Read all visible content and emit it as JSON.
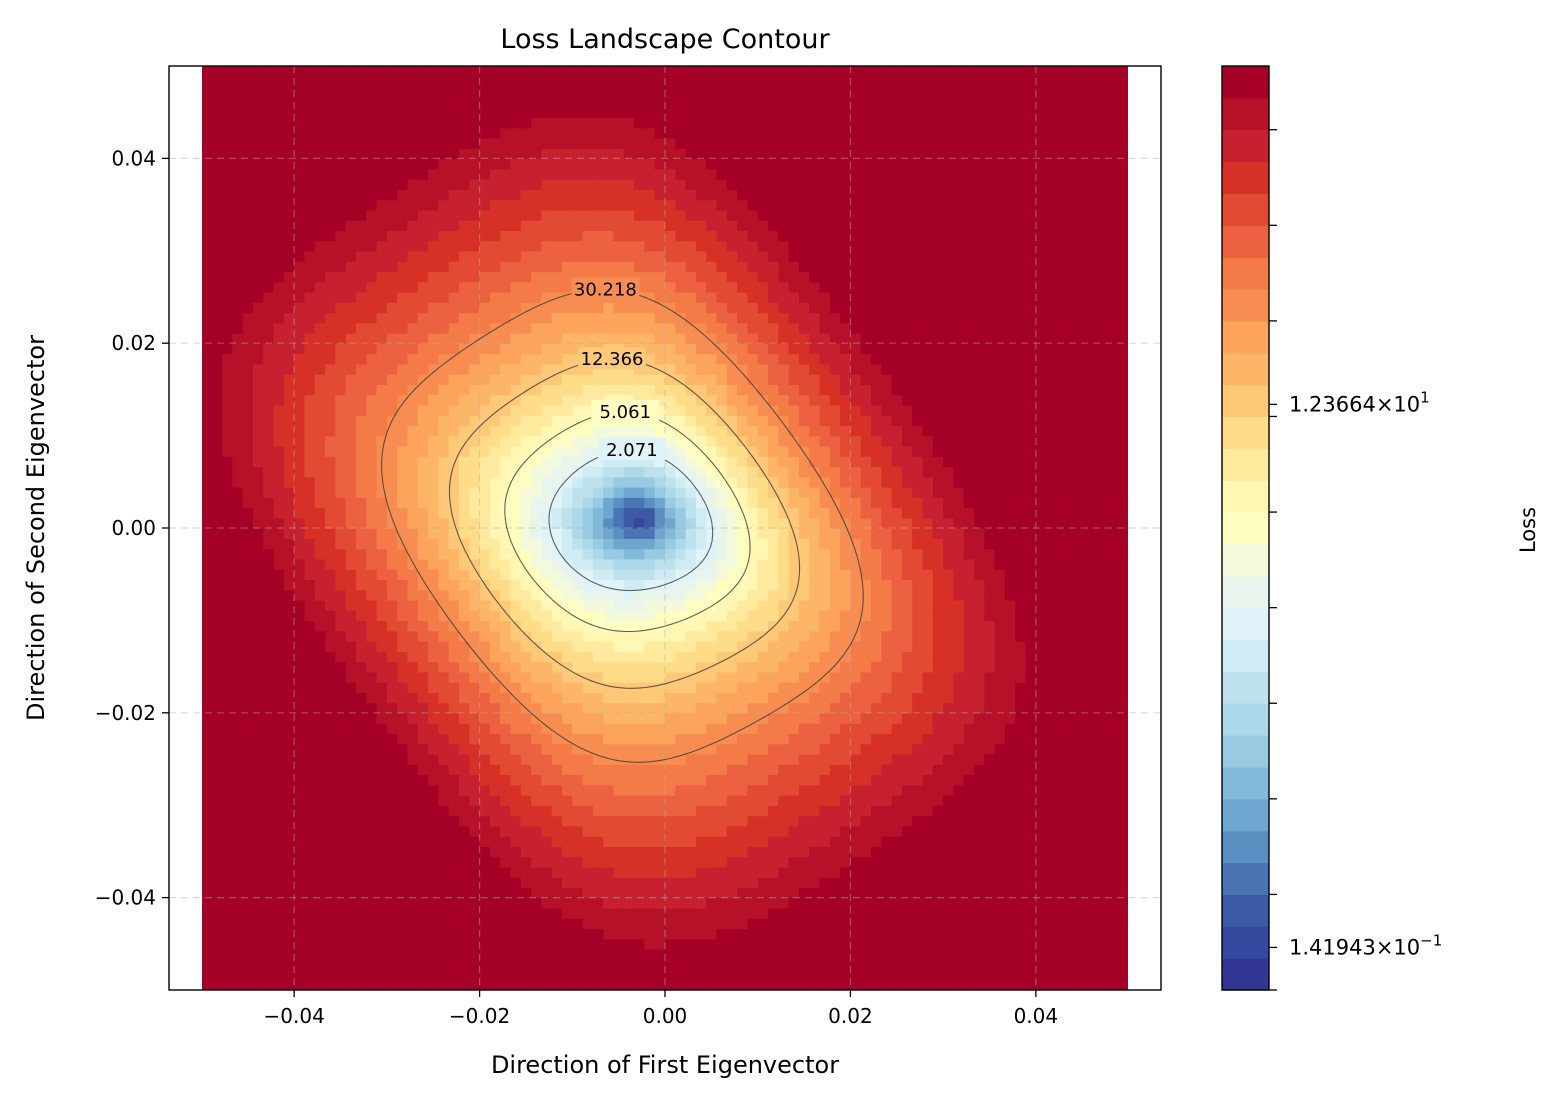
{
  "chart_data": {
    "type": "contour",
    "title": "Loss Landscape Contour",
    "xlabel": "Direction of First Eigenvector",
    "ylabel": "Direction of Second Eigenvector",
    "colorbar_label": "Loss",
    "colormap": "RdYlBu_r",
    "color_scale": "log",
    "xlim": [
      -0.0535,
      0.0535
    ],
    "ylim": [
      -0.05,
      0.05
    ],
    "data_extent": {
      "x": [
        -0.05,
        0.05
      ],
      "y": [
        -0.05,
        0.05
      ]
    },
    "x_ticks": [
      -0.04,
      -0.02,
      0.0,
      0.02,
      0.04
    ],
    "x_tick_labels": [
      "−0.04",
      "−0.02",
      "0.00",
      "0.02",
      "0.04"
    ],
    "y_ticks": [
      -0.04,
      -0.02,
      0.0,
      0.02,
      0.04
    ],
    "y_tick_labels": [
      "−0.04",
      "−0.02",
      "0.00",
      "0.02",
      "0.04"
    ],
    "grid": true,
    "minimum": {
      "x": -0.003,
      "y": 0.001
    },
    "contour_lines": [
      {
        "level": 2.071,
        "label": "2.071"
      },
      {
        "level": 5.061,
        "label": "5.061"
      },
      {
        "level": 12.366,
        "label": "12.366"
      },
      {
        "level": 30.218,
        "label": "30.218"
      }
    ],
    "colorbar": {
      "vmin": 0.1,
      "vmax": 200,
      "n_bands": 29,
      "labeled_ticks": [
        {
          "value": 0.141943,
          "mantissa": "1.41943",
          "exponent": "−1"
        },
        {
          "value": 12.3664,
          "mantissa": "1.23664",
          "exponent": "1"
        }
      ],
      "band_colors": [
        "#313695",
        "#36479e",
        "#3c59a6",
        "#4a74b4",
        "#5b8fc2",
        "#6da6cf",
        "#83b9d8",
        "#98cae1",
        "#abd9e9",
        "#bde2ee",
        "#cfebf3",
        "#e0f3f8",
        "#e9f5ec",
        "#f3f9db",
        "#fefec0",
        "#fff7b3",
        "#fee99d",
        "#fedc88",
        "#fdc877",
        "#fdb567",
        "#fca45c",
        "#f88d52",
        "#f47a47",
        "#ec6140",
        "#e24a33",
        "#d73027",
        "#c72130",
        "#b61129",
        "#a50026"
      ],
      "colors": {
        "text": "#000000"
      }
    }
  }
}
